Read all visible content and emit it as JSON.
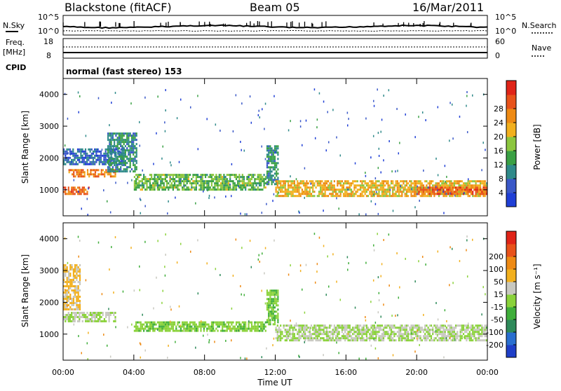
{
  "header": {
    "station": "Blackstone (fitACF)",
    "beam": "Beam 05",
    "date": "16/Mar/2011"
  },
  "top_panels": {
    "nsky_label": "N.Sky",
    "nsky_ticks": [
      "10^5",
      "10^0"
    ],
    "nsearch_label": "N.Search",
    "nsearch_ticks": [
      "10^5",
      "10^0"
    ],
    "freq_label": "Freq.",
    "freq_unit": "[MHz]",
    "freq_ticks": [
      "18",
      "8"
    ],
    "nave_label": "Nave",
    "nave_ticks": [
      "60",
      "0"
    ],
    "cpid_label": "CPID",
    "cpid_value": "normal (fast stereo) 153"
  },
  "power_panel": {
    "ylabel": "Slant Range [km]",
    "y_ticks": [
      "1000",
      "2000",
      "3000",
      "4000"
    ],
    "colorbar_label": "Power [dB]",
    "colorbar_ticks": [
      "4",
      "8",
      "12",
      "16",
      "20",
      "24",
      "28"
    ],
    "colorbar_colors": [
      "#1f3fd6",
      "#3a58c8",
      "#2f8a8a",
      "#3aa044",
      "#8cc63f",
      "#f2b01e",
      "#ee8a14",
      "#e8521a",
      "#e02418"
    ]
  },
  "velocity_panel": {
    "ylabel": "Slant Range [km]",
    "y_ticks": [
      "1000",
      "2000",
      "3000",
      "4000"
    ],
    "colorbar_label": "Velocity [m s⁻¹]",
    "colorbar_ticks": [
      "200",
      "100",
      "50",
      "15",
      "-15",
      "-50",
      "-100",
      "-200"
    ],
    "colorbar_colors": [
      "#1f3fc8",
      "#2a6fd0",
      "#2e8a5a",
      "#3fae3a",
      "#8ad23a",
      "#c8c8c0",
      "#f2b01e",
      "#ee8a14",
      "#e8521a",
      "#e02418"
    ]
  },
  "x_axis": {
    "label": "Time UT",
    "ticks": [
      "00:00",
      "04:00",
      "08:00",
      "12:00",
      "16:00",
      "20:00",
      "00:00"
    ]
  },
  "chart_data": [
    {
      "type": "heatmap",
      "name_in_image": "Power [dB]",
      "xlabel": "Time UT",
      "ylabel": "Slant Range [km]",
      "xlim": [
        "00:00",
        "24:00"
      ],
      "ylim": [
        180,
        4500
      ],
      "colorbar_range": [
        0,
        32
      ],
      "bands": [
        {
          "t": [
            0.0,
            1.5
          ],
          "range_lo": 900,
          "range_hi": 1100,
          "power": 26
        },
        {
          "t": [
            0.3,
            3.0
          ],
          "range_lo": 1400,
          "range_hi": 1650,
          "power": 24
        },
        {
          "t": [
            0.0,
            3.5
          ],
          "range_lo": 1800,
          "range_hi": 2300,
          "power": 6
        },
        {
          "t": [
            2.5,
            4.2
          ],
          "range_lo": 1600,
          "range_hi": 2800,
          "power": 10
        },
        {
          "t": [
            4.0,
            11.5
          ],
          "range_lo": 1000,
          "range_hi": 1500,
          "power": 14
        },
        {
          "t": [
            11.5,
            12.2
          ],
          "range_lo": 1200,
          "range_hi": 2400,
          "power": 10
        },
        {
          "t": [
            12.0,
            24.0
          ],
          "range_lo": 800,
          "range_hi": 1300,
          "power": 20
        },
        {
          "t": [
            20.0,
            24.0
          ],
          "range_lo": 900,
          "range_hi": 1100,
          "power": 26
        }
      ]
    },
    {
      "type": "heatmap",
      "name_in_image": "Velocity [m s⁻¹]",
      "xlabel": "Time UT",
      "ylabel": "Slant Range [km]",
      "xlim": [
        "00:00",
        "24:00"
      ],
      "ylim": [
        180,
        4500
      ],
      "colorbar_range": [
        -250,
        250
      ],
      "bands": [
        {
          "t": [
            0.0,
            3.0
          ],
          "range_lo": 1400,
          "range_hi": 1700,
          "velocity": 0
        },
        {
          "t": [
            0.0,
            1.0
          ],
          "range_lo": 1800,
          "range_hi": 3200,
          "velocity": -60
        },
        {
          "t": [
            4.0,
            11.5
          ],
          "range_lo": 1100,
          "range_hi": 1400,
          "velocity": 30
        },
        {
          "t": [
            11.5,
            12.2
          ],
          "range_lo": 1300,
          "range_hi": 2400,
          "velocity": 40
        },
        {
          "t": [
            12.0,
            24.0
          ],
          "range_lo": 800,
          "range_hi": 1300,
          "velocity": 0
        }
      ]
    }
  ]
}
